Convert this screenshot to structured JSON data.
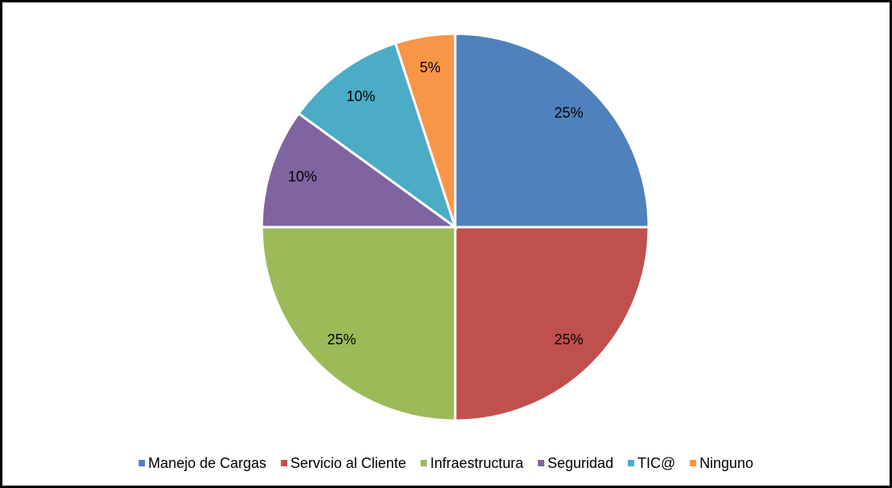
{
  "chart_data": {
    "type": "pie",
    "categories": [
      "Manejo de Cargas",
      "Servicio al Cliente",
      "Infraestructura",
      "Seguridad",
      "TIC@",
      "Ninguno"
    ],
    "values": [
      25,
      25,
      25,
      10,
      10,
      5
    ],
    "value_labels": [
      "25%",
      "25%",
      "25%",
      "10%",
      "10%",
      "5%"
    ],
    "colors": [
      "#4f81bd",
      "#c0504d",
      "#9bbb59",
      "#8064a2",
      "#4bacc6",
      "#f79646"
    ],
    "legend": "bottom"
  }
}
